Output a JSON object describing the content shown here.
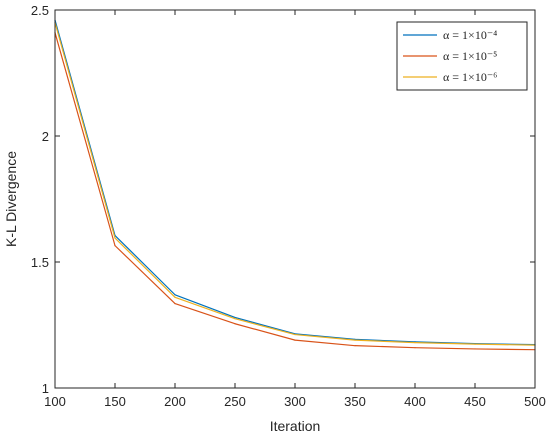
{
  "chart_data": {
    "type": "line",
    "title": "",
    "xlabel": "Iteration",
    "ylabel": "K-L Divergence",
    "xlim": [
      100,
      500
    ],
    "ylim": [
      1,
      2.5
    ],
    "xticks": [
      100,
      150,
      200,
      250,
      300,
      350,
      400,
      450,
      500
    ],
    "yticks": [
      1,
      1.5,
      2,
      2.5
    ],
    "x_tick_labels": [
      "100",
      "150",
      "200",
      "250",
      "300",
      "350",
      "400",
      "450",
      "500"
    ],
    "y_tick_labels": [
      "1",
      "1.5",
      "2",
      "2.5"
    ],
    "grid": false,
    "legend_position": "top-right",
    "x": [
      100,
      150,
      200,
      250,
      300,
      350,
      400,
      450,
      500
    ],
    "series": [
      {
        "name": "α = 1×10⁻⁴",
        "color": "#0072BD",
        "values": [
          2.46,
          1.605,
          1.37,
          1.28,
          1.215,
          1.193,
          1.183,
          1.176,
          1.172
        ]
      },
      {
        "name": "α = 1×10⁻⁵",
        "color": "#D95319",
        "values": [
          2.41,
          1.565,
          1.335,
          1.255,
          1.19,
          1.168,
          1.16,
          1.155,
          1.152
        ]
      },
      {
        "name": "α = 1×10⁻⁶",
        "color": "#EDB120",
        "values": [
          2.45,
          1.595,
          1.36,
          1.275,
          1.212,
          1.19,
          1.18,
          1.174,
          1.17
        ]
      }
    ]
  }
}
